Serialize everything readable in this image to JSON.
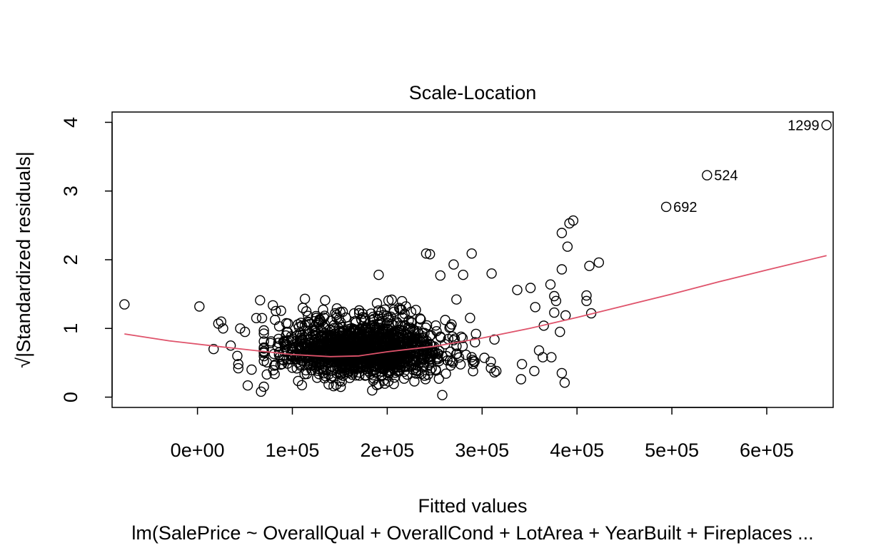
{
  "chart_data": {
    "type": "scatter",
    "title": "Scale-Location",
    "xlabel": "Fitted values",
    "ylabel": "√|Standardized residuals|",
    "subtitle": "lm(SalePrice ~ OverallQual + OverallCond + LotArea + YearBuilt + Fireplaces ...",
    "xlim": [
      -90000,
      670000
    ],
    "ylim": [
      -0.15,
      4.15
    ],
    "x_ticks": [
      0,
      100000,
      200000,
      300000,
      400000,
      500000,
      600000
    ],
    "x_tick_labels": [
      "0e+00",
      "1e+05",
      "2e+05",
      "3e+05",
      "4e+05",
      "5e+05",
      "6e+05"
    ],
    "y_ticks": [
      0,
      1,
      2,
      3,
      4
    ],
    "y_tick_labels": [
      "0",
      "1",
      "2",
      "3",
      "4"
    ],
    "grid": false,
    "point_color": "#000000",
    "smoother_color": "#DF536B",
    "labeled_points": [
      {
        "label": "1299",
        "x": 663000,
        "y": 3.96
      },
      {
        "label": "524",
        "x": 537000,
        "y": 3.23
      },
      {
        "label": "692",
        "x": 494000,
        "y": 2.77
      }
    ],
    "outlier_points": [
      {
        "x": -77000,
        "y": 1.35
      },
      {
        "x": 2000,
        "y": 1.32
      },
      {
        "x": 22000,
        "y": 1.07
      },
      {
        "x": 25000,
        "y": 1.1
      },
      {
        "x": 27000,
        "y": 1.0
      },
      {
        "x": 17000,
        "y": 0.7
      },
      {
        "x": 35000,
        "y": 0.75
      },
      {
        "x": 42000,
        "y": 0.6
      },
      {
        "x": 43000,
        "y": 0.48
      },
      {
        "x": 43000,
        "y": 0.42
      },
      {
        "x": 53000,
        "y": 0.17
      },
      {
        "x": 57000,
        "y": 0.4
      },
      {
        "x": 67000,
        "y": 0.08
      },
      {
        "x": 66000,
        "y": 1.41
      },
      {
        "x": 62000,
        "y": 1.15
      },
      {
        "x": 45000,
        "y": 1.0
      },
      {
        "x": 50000,
        "y": 0.95
      },
      {
        "x": 68000,
        "y": 1.15
      },
      {
        "x": 191000,
        "y": 1.78
      },
      {
        "x": 241000,
        "y": 2.09
      },
      {
        "x": 245000,
        "y": 2.08
      },
      {
        "x": 289000,
        "y": 2.09
      },
      {
        "x": 270000,
        "y": 1.93
      },
      {
        "x": 310000,
        "y": 1.8
      },
      {
        "x": 256000,
        "y": 1.77
      },
      {
        "x": 280000,
        "y": 1.78
      },
      {
        "x": 258000,
        "y": 0.03
      },
      {
        "x": 384000,
        "y": 2.39
      },
      {
        "x": 392000,
        "y": 2.53
      },
      {
        "x": 396000,
        "y": 2.57
      },
      {
        "x": 390000,
        "y": 2.19
      },
      {
        "x": 384000,
        "y": 1.86
      },
      {
        "x": 413000,
        "y": 1.91
      },
      {
        "x": 423000,
        "y": 1.96
      },
      {
        "x": 372000,
        "y": 1.64
      },
      {
        "x": 410000,
        "y": 1.48
      },
      {
        "x": 410000,
        "y": 1.4
      },
      {
        "x": 415000,
        "y": 1.22
      },
      {
        "x": 388000,
        "y": 1.19
      },
      {
        "x": 376000,
        "y": 1.23
      },
      {
        "x": 382000,
        "y": 0.95
      },
      {
        "x": 365000,
        "y": 1.04
      },
      {
        "x": 384000,
        "y": 0.35
      },
      {
        "x": 387000,
        "y": 0.21
      },
      {
        "x": 373000,
        "y": 0.58
      },
      {
        "x": 364000,
        "y": 0.58
      },
      {
        "x": 360000,
        "y": 0.68
      },
      {
        "x": 341000,
        "y": 0.26
      },
      {
        "x": 355000,
        "y": 0.38
      },
      {
        "x": 342000,
        "y": 0.48
      },
      {
        "x": 378000,
        "y": 1.4
      },
      {
        "x": 376000,
        "y": 1.47
      },
      {
        "x": 356000,
        "y": 1.31
      },
      {
        "x": 351000,
        "y": 1.59
      },
      {
        "x": 337000,
        "y": 1.56
      },
      {
        "x": 315000,
        "y": 0.38
      },
      {
        "x": 313000,
        "y": 0.36
      }
    ],
    "cloud": {
      "n": 1380,
      "x_center": 175000,
      "x_spread": 60000,
      "y_center": 0.65,
      "y_spread": 0.22
    },
    "smoother": [
      {
        "x": -77000,
        "y": 0.92
      },
      {
        "x": -30000,
        "y": 0.82
      },
      {
        "x": 20000,
        "y": 0.74
      },
      {
        "x": 60000,
        "y": 0.68
      },
      {
        "x": 100000,
        "y": 0.62
      },
      {
        "x": 140000,
        "y": 0.59
      },
      {
        "x": 170000,
        "y": 0.6
      },
      {
        "x": 200000,
        "y": 0.66
      },
      {
        "x": 250000,
        "y": 0.74
      },
      {
        "x": 300000,
        "y": 0.86
      },
      {
        "x": 350000,
        "y": 1.0
      },
      {
        "x": 400000,
        "y": 1.16
      },
      {
        "x": 450000,
        "y": 1.33
      },
      {
        "x": 500000,
        "y": 1.5
      },
      {
        "x": 550000,
        "y": 1.68
      },
      {
        "x": 600000,
        "y": 1.85
      },
      {
        "x": 663000,
        "y": 2.06
      }
    ]
  }
}
